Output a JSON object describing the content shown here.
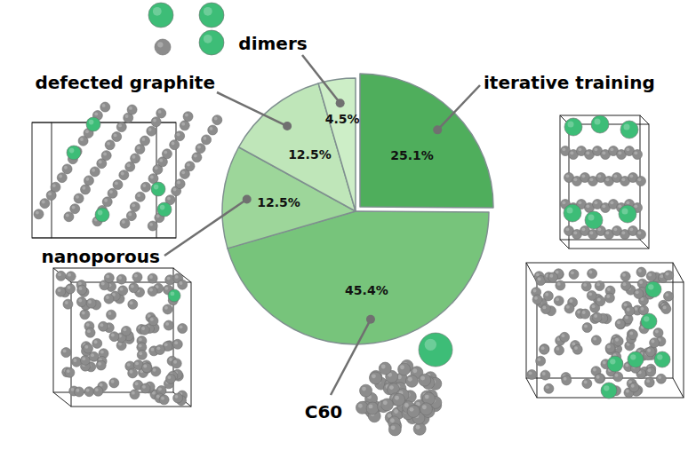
{
  "chart_data": {
    "type": "pie",
    "categories": [
      "iterative training",
      "C60",
      "nanoporous",
      "defected graphite",
      "dimers"
    ],
    "values": [
      25.1,
      45.4,
      12.5,
      12.5,
      4.5
    ],
    "value_labels": [
      "25.1%",
      "45.4%",
      "12.5%",
      "12.5%",
      "4.5%"
    ],
    "colors": [
      "#4fae5c",
      "#77c47b",
      "#9dd69a",
      "#bfe6b9",
      "#cdeec7"
    ],
    "data_labels": true
  }
}
